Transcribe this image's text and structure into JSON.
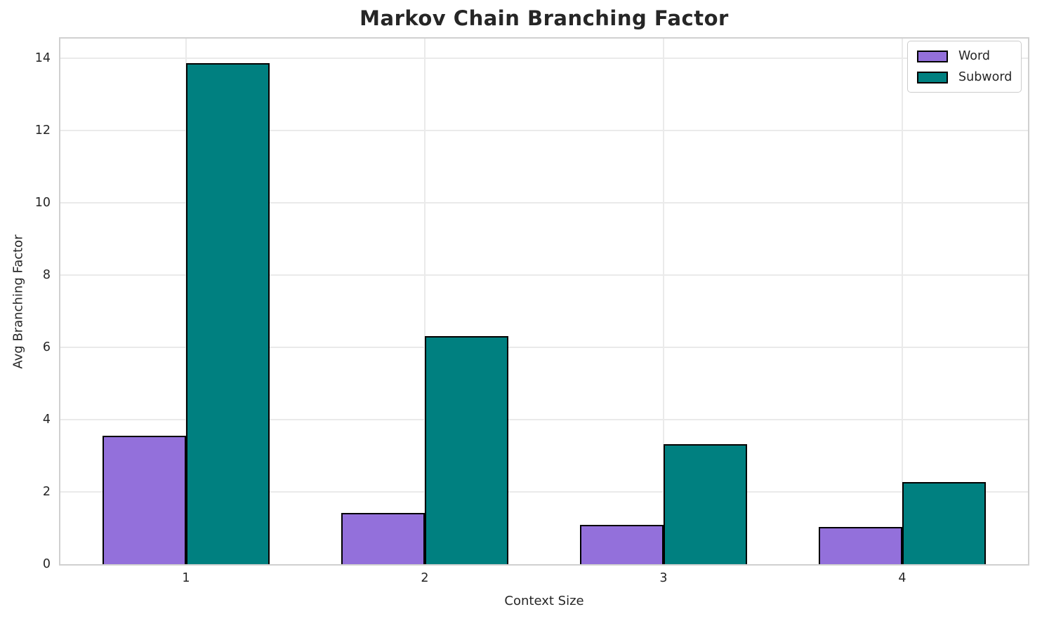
{
  "chart_data": {
    "type": "bar",
    "title": "Markov Chain Branching Factor",
    "xlabel": "Context Size",
    "ylabel": "Avg Branching Factor",
    "categories": [
      "1",
      "2",
      "3",
      "4"
    ],
    "series": [
      {
        "name": "Word",
        "color": "#9370DB",
        "values": [
          3.55,
          1.42,
          1.08,
          1.03
        ]
      },
      {
        "name": "Subword",
        "color": "#008080",
        "values": [
          13.87,
          6.3,
          3.31,
          2.27
        ]
      }
    ],
    "bar_edge_color": "#000000",
    "yticks": [
      0,
      2,
      4,
      6,
      8,
      10,
      12,
      14
    ],
    "ylim": [
      0,
      14.54
    ],
    "grid": true,
    "grid_color": "#eaeaea",
    "legend_position": "upper right"
  }
}
